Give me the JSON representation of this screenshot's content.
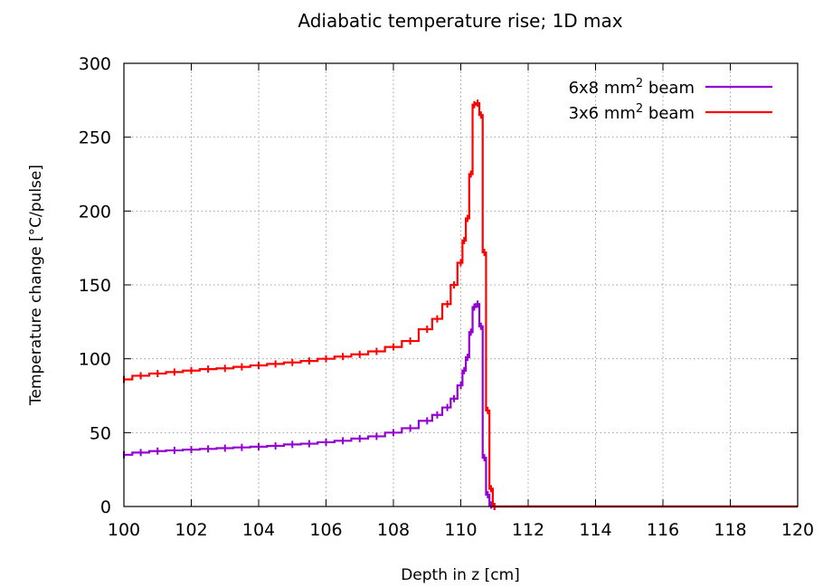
{
  "chart_data": {
    "type": "line",
    "title": "Adiabatic temperature rise; 1D max",
    "xlabel": "Depth in z [cm]",
    "ylabel": "Temperature change [°C/pulse]",
    "xlim": [
      100,
      120
    ],
    "ylim": [
      0,
      300
    ],
    "xticks": [
      100,
      102,
      104,
      106,
      108,
      110,
      112,
      114,
      116,
      118,
      120
    ],
    "yticks": [
      0,
      50,
      100,
      150,
      200,
      250,
      300
    ],
    "grid": true,
    "legend_position": "top-right",
    "series": [
      {
        "name": "6x8 mm² beam",
        "legend_prefix": "6x8 mm",
        "legend_sup": "2",
        "legend_suffix": " beam",
        "color": "#9400d3",
        "x": [
          100.0,
          100.5,
          101.0,
          101.5,
          102.0,
          102.5,
          103.0,
          103.5,
          104.0,
          104.5,
          105.0,
          105.5,
          106.0,
          106.5,
          107.0,
          107.5,
          108.0,
          108.5,
          109.0,
          109.3,
          109.6,
          109.8,
          110.0,
          110.1,
          110.2,
          110.3,
          110.4,
          110.5,
          110.6,
          110.7,
          110.8,
          110.9,
          111.0,
          112.0,
          114.0,
          116.0,
          118.0,
          120.0
        ],
        "y": [
          35,
          36.5,
          37.5,
          38,
          38.5,
          39,
          39.5,
          40,
          40.5,
          41,
          42,
          42.5,
          43.5,
          44.5,
          46,
          47.5,
          50,
          53,
          58,
          62,
          67,
          73,
          82,
          92,
          101,
          118,
          135,
          137,
          122,
          33,
          8,
          1,
          0,
          0,
          0,
          0,
          0,
          0
        ]
      },
      {
        "name": "3x6 mm² beam",
        "legend_prefix": "3x6 mm",
        "legend_sup": "2",
        "legend_suffix": " beam",
        "color": "#ff0000",
        "x": [
          100.0,
          100.5,
          101.0,
          101.5,
          102.0,
          102.5,
          103.0,
          103.5,
          104.0,
          104.5,
          105.0,
          105.5,
          106.0,
          106.5,
          107.0,
          107.5,
          108.0,
          108.5,
          109.0,
          109.3,
          109.6,
          109.8,
          110.0,
          110.1,
          110.2,
          110.3,
          110.4,
          110.5,
          110.6,
          110.7,
          110.8,
          110.9,
          111.0,
          112.0,
          114.0,
          116.0,
          118.0,
          120.0
        ],
        "y": [
          86,
          88.5,
          90,
          91,
          92,
          93,
          93.5,
          94.5,
          95.5,
          96.5,
          97.5,
          98.5,
          100,
          101.5,
          103,
          105,
          108,
          112,
          120,
          127,
          137,
          150,
          165,
          180,
          195,
          225,
          272,
          273,
          265,
          172,
          65,
          12,
          0,
          0,
          0,
          0,
          0,
          0
        ]
      }
    ]
  }
}
